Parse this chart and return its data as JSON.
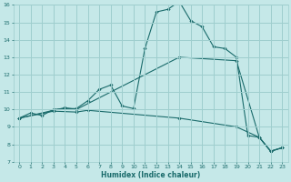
{
  "xlabel": "Humidex (Indice chaleur)",
  "xlim": [
    -0.5,
    23.5
  ],
  "ylim": [
    7,
    16
  ],
  "yticks": [
    7,
    8,
    9,
    10,
    11,
    12,
    13,
    14,
    15,
    16
  ],
  "xticks": [
    0,
    1,
    2,
    3,
    4,
    5,
    6,
    7,
    8,
    9,
    10,
    11,
    12,
    13,
    14,
    15,
    16,
    17,
    18,
    19,
    20,
    21,
    22,
    23
  ],
  "bg_color": "#c5e8e8",
  "grid_color": "#9ecece",
  "line_color": "#1a6b6b",
  "lines": [
    {
      "x": [
        0,
        1,
        2,
        3,
        4,
        5,
        6,
        7,
        8,
        9,
        10,
        11,
        12,
        13,
        14,
        15,
        16,
        17,
        18,
        19,
        20,
        21,
        22,
        23
      ],
      "y": [
        9.5,
        9.8,
        9.65,
        10.0,
        10.05,
        10.05,
        10.5,
        11.15,
        11.4,
        10.2,
        10.05,
        13.5,
        15.6,
        15.75,
        16.2,
        15.1,
        14.75,
        13.6,
        13.5,
        13.0,
        8.5,
        8.4,
        7.6,
        7.8
      ]
    },
    {
      "x": [
        0,
        4,
        5,
        14,
        19,
        21,
        22,
        23
      ],
      "y": [
        9.5,
        10.1,
        10.0,
        13.0,
        12.8,
        8.4,
        7.6,
        7.8
      ]
    },
    {
      "x": [
        0,
        3,
        5,
        6,
        14,
        19,
        21,
        22,
        23
      ],
      "y": [
        9.5,
        9.9,
        9.85,
        9.95,
        9.5,
        9.0,
        8.4,
        7.6,
        7.8
      ]
    }
  ]
}
